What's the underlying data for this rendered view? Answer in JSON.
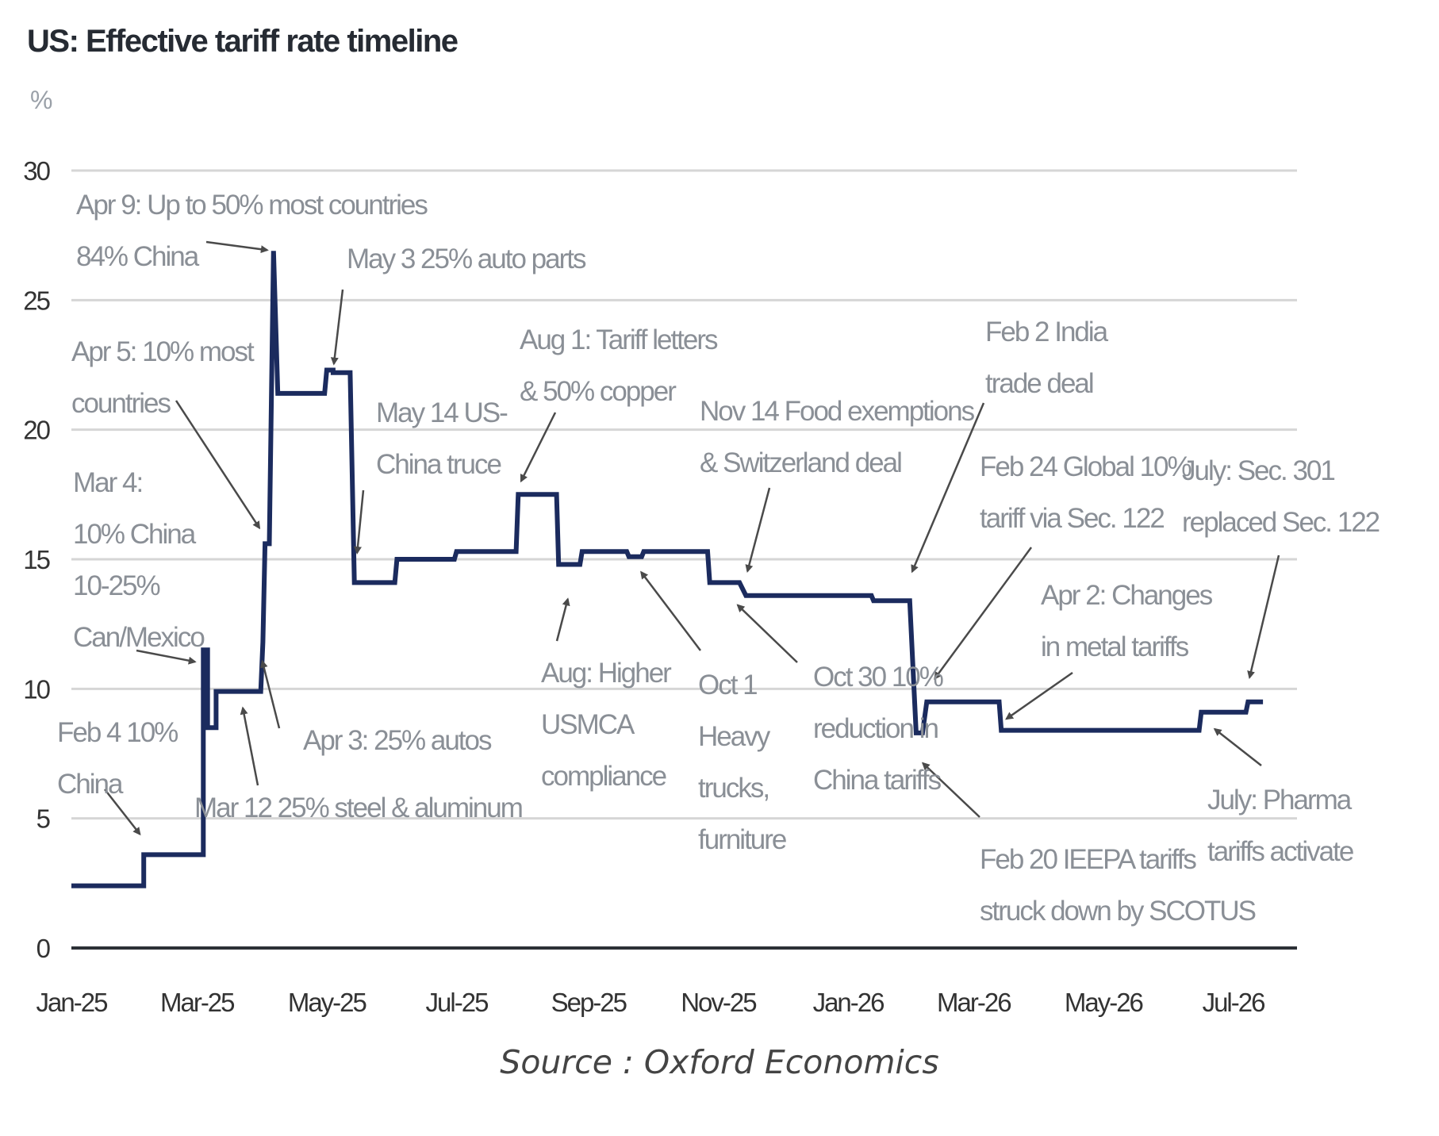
{
  "title": "US: Effective tariff rate timeline",
  "unit": "%",
  "source": "Source : Oxford Economics",
  "colors": {
    "line": "#1b2b5e",
    "grid": "#d6d6d6",
    "axis": "#2c3036",
    "annotation": "#8a8f96",
    "arrow": "#4a4a4a"
  },
  "chart_data": {
    "type": "line",
    "title": "US: Effective tariff rate timeline",
    "ylabel": "%",
    "xlabel": "",
    "ylim": [
      0,
      30
    ],
    "xlim": [
      "2025-01-01",
      "2026-07-31"
    ],
    "yticks": [
      0,
      5,
      10,
      15,
      20,
      25,
      30
    ],
    "xticks": [
      {
        "date": "2025-01-01",
        "label": "Jan-25"
      },
      {
        "date": "2025-03-01",
        "label": "Mar-25"
      },
      {
        "date": "2025-05-01",
        "label": "May-25"
      },
      {
        "date": "2025-07-01",
        "label": "Jul-25"
      },
      {
        "date": "2025-09-01",
        "label": "Sep-25"
      },
      {
        "date": "2025-11-01",
        "label": "Nov-25"
      },
      {
        "date": "2026-01-01",
        "label": "Jan-26"
      },
      {
        "date": "2026-03-01",
        "label": "Mar-26"
      },
      {
        "date": "2026-05-01",
        "label": "May-26"
      },
      {
        "date": "2026-07-01",
        "label": "Jul-26"
      }
    ],
    "grid": true,
    "legend": "none",
    "series": [
      {
        "points": [
          [
            "2025-01-01",
            2.4
          ],
          [
            "2025-02-04",
            2.4
          ],
          [
            "2025-02-04",
            3.6
          ],
          [
            "2025-03-04",
            3.6
          ],
          [
            "2025-03-04",
            11.5
          ],
          [
            "2025-03-06",
            11.5
          ],
          [
            "2025-03-06",
            8.5
          ],
          [
            "2025-03-10",
            8.5
          ],
          [
            "2025-03-10",
            9.9
          ],
          [
            "2025-03-31",
            9.9
          ],
          [
            "2025-04-01",
            11.8
          ],
          [
            "2025-04-02",
            15.6
          ],
          [
            "2025-04-04",
            15.6
          ],
          [
            "2025-04-06",
            26.9
          ],
          [
            "2025-04-08",
            21.4
          ],
          [
            "2025-04-30",
            21.4
          ],
          [
            "2025-05-01",
            22.3
          ],
          [
            "2025-05-04",
            22.3
          ],
          [
            "2025-05-04",
            22.2
          ],
          [
            "2025-05-12",
            22.2
          ],
          [
            "2025-05-14",
            14.1
          ],
          [
            "2025-06-02",
            14.1
          ],
          [
            "2025-06-03",
            15.0
          ],
          [
            "2025-06-30",
            15.0
          ],
          [
            "2025-07-01",
            15.3
          ],
          [
            "2025-07-29",
            15.3
          ],
          [
            "2025-07-30",
            17.5
          ],
          [
            "2025-08-17",
            17.5
          ],
          [
            "2025-08-18",
            14.8
          ],
          [
            "2025-08-28",
            14.8
          ],
          [
            "2025-08-29",
            15.3
          ],
          [
            "2025-09-19",
            15.3
          ],
          [
            "2025-09-20",
            15.1
          ],
          [
            "2025-09-26",
            15.1
          ],
          [
            "2025-09-27",
            15.3
          ],
          [
            "2025-10-27",
            15.3
          ],
          [
            "2025-10-28",
            14.1
          ],
          [
            "2025-11-11",
            14.1
          ],
          [
            "2025-11-14",
            13.6
          ],
          [
            "2026-01-12",
            13.6
          ],
          [
            "2026-01-13",
            13.4
          ],
          [
            "2026-01-30",
            13.4
          ],
          [
            "2026-02-02",
            8.3
          ],
          [
            "2026-02-05",
            8.3
          ],
          [
            "2026-02-07",
            9.5
          ],
          [
            "2026-03-13",
            9.5
          ],
          [
            "2026-03-14",
            8.4
          ],
          [
            "2026-06-15",
            8.4
          ],
          [
            "2026-06-16",
            9.1
          ],
          [
            "2026-07-07",
            9.1
          ],
          [
            "2026-07-08",
            9.5
          ],
          [
            "2026-07-15",
            9.5
          ]
        ]
      }
    ],
    "annotations": [
      {
        "lines": [
          "Apr 9: Up to 50% most countries",
          "84% China"
        ],
        "date": "2025-04-06",
        "value": 26.9
      },
      {
        "lines": [
          "May 3 25% auto parts"
        ],
        "date": "2025-05-04",
        "value": 22.3
      },
      {
        "lines": [
          "Apr 5: 10% most",
          "countries"
        ],
        "date": "2025-04-01",
        "value": 16.0
      },
      {
        "lines": [
          "May 14 US-",
          "China truce"
        ],
        "date": "2025-05-15",
        "value": 15.0
      },
      {
        "lines": [
          "Aug 1: Tariff letters",
          "& 50% copper"
        ],
        "date": "2025-07-30",
        "value": 17.8
      },
      {
        "lines": [
          "Nov 14 Food exemptions",
          "& Switzerland deal"
        ],
        "date": "2025-11-14",
        "value": 14.3
      },
      {
        "lines": [
          "Feb 2 India",
          "trade deal"
        ],
        "date": "2026-01-30",
        "value": 14.3
      },
      {
        "lines": [
          "Mar 4:",
          "10% China",
          "10-25%",
          "Can/Mexico"
        ],
        "date": "2025-03-03",
        "value": 11.0
      },
      {
        "lines": [
          "Feb 24 Global 10%",
          "tariff via Sec. 122"
        ],
        "date": "2026-02-09",
        "value": 10.2
      },
      {
        "lines": [
          "July: Sec. 301",
          "replaced Sec. 122"
        ],
        "date": "2026-07-08",
        "value": 10.2
      },
      {
        "lines": [
          "Apr 2: Changes",
          "in metal tariffs"
        ],
        "date": "2026-03-14",
        "value": 8.7
      },
      {
        "lines": [
          "Feb 4 10%",
          "China"
        ],
        "date": "2025-02-04",
        "value": 4.2
      },
      {
        "lines": [
          "Apr 3: 25% autos"
        ],
        "date": "2025-03-31",
        "value": 11.3
      },
      {
        "lines": [
          "Mar 12 25% steel & aluminum"
        ],
        "date": "2025-03-22",
        "value": 9.5
      },
      {
        "lines": [
          "Aug: Higher",
          "USMCA",
          "compliance"
        ],
        "date": "2025-08-23",
        "value": 13.7
      },
      {
        "lines": [
          "Oct 1",
          "Heavy",
          "trucks,",
          "furniture"
        ],
        "date": "2025-09-24",
        "value": 14.7
      },
      {
        "lines": [
          "Oct 30 10%",
          "reduction in",
          "China tariffs"
        ],
        "date": "2025-11-08",
        "value": 13.4
      },
      {
        "lines": [
          "Feb 20 IEEPA tariffs",
          "struck down by SCOTUS"
        ],
        "date": "2026-02-03",
        "value": 7.3
      },
      {
        "lines": [
          "July: Pharma",
          "tariffs activate"
        ],
        "date": "2026-06-20",
        "value": 8.6
      }
    ]
  }
}
